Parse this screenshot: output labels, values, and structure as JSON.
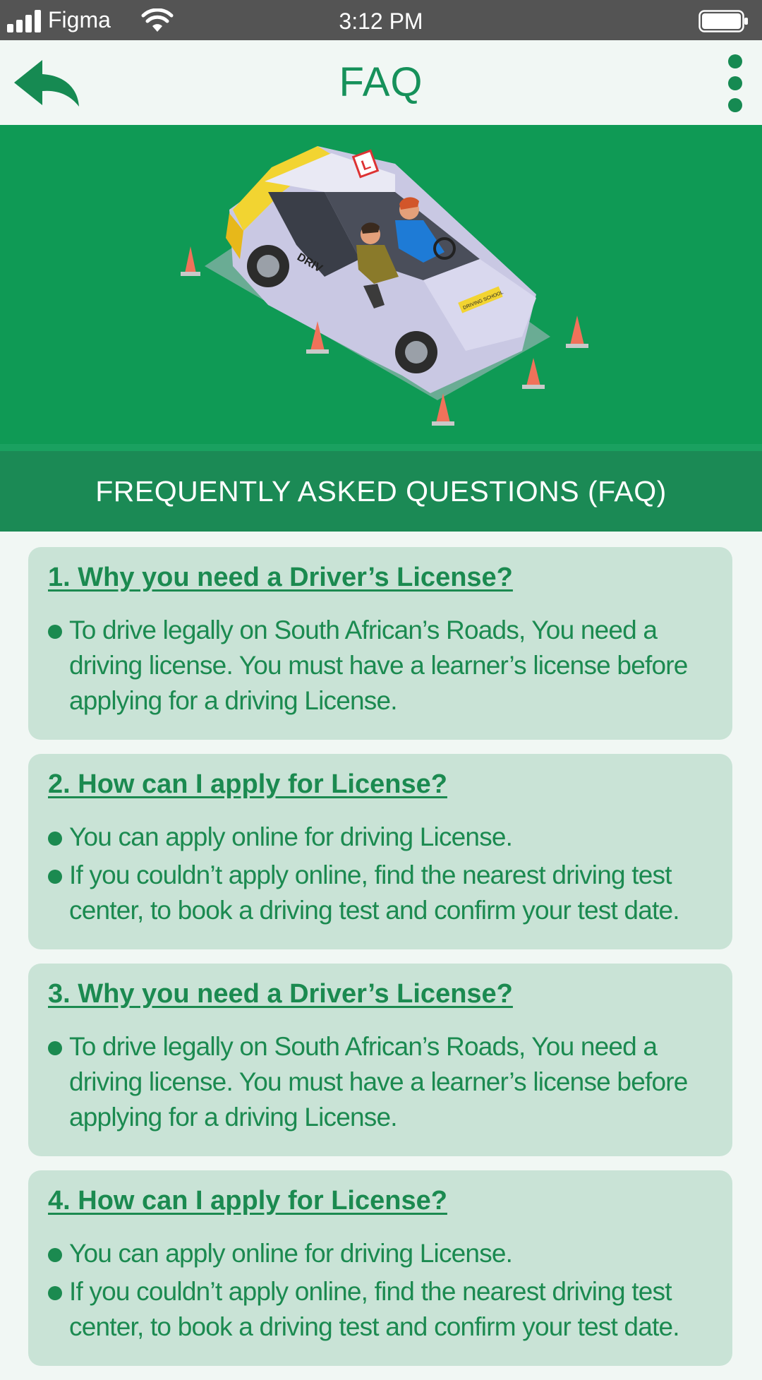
{
  "status_bar": {
    "carrier": "Figma",
    "time": "3:12 PM"
  },
  "header": {
    "title": "FAQ",
    "back_icon": "back-arrow-icon",
    "menu_icon": "more-vertical-icon"
  },
  "hero": {
    "image": "driving-school-car-illustration",
    "car_door_text": "DRIV",
    "car_plate_text": "DRIVING SCHOOL",
    "sign_text": "L"
  },
  "banner": {
    "text": "FREQUENTLY ASKED QUESTIONS (FAQ)"
  },
  "colors": {
    "primary": "#0f9a55",
    "band": "#1b8a55",
    "card": "#c9e3d6",
    "text": "#1b8a50"
  },
  "faqs": [
    {
      "question": "1. Why you need a Driver’s License?",
      "answers": [
        "To drive legally on South African’s Roads, You need a driving license. You must have a learner’s license before applying for a driving License."
      ]
    },
    {
      "question": "2. How can I apply for License?",
      "answers": [
        "You can apply online for driving License.",
        "If you couldn’t apply online, find the nearest driving test center, to book a driving test and confirm your test date."
      ]
    },
    {
      "question": "3. Why you need a Driver’s License?",
      "answers": [
        "To drive legally on South African’s Roads, You need a driving license. You must have a learner’s license before applying for a driving License."
      ]
    },
    {
      "question": "4. How can I apply for License?",
      "answers": [
        "You can apply online for driving License.",
        "If you couldn’t apply online, find the nearest driving test center, to book a driving test and confirm your test date."
      ]
    }
  ]
}
